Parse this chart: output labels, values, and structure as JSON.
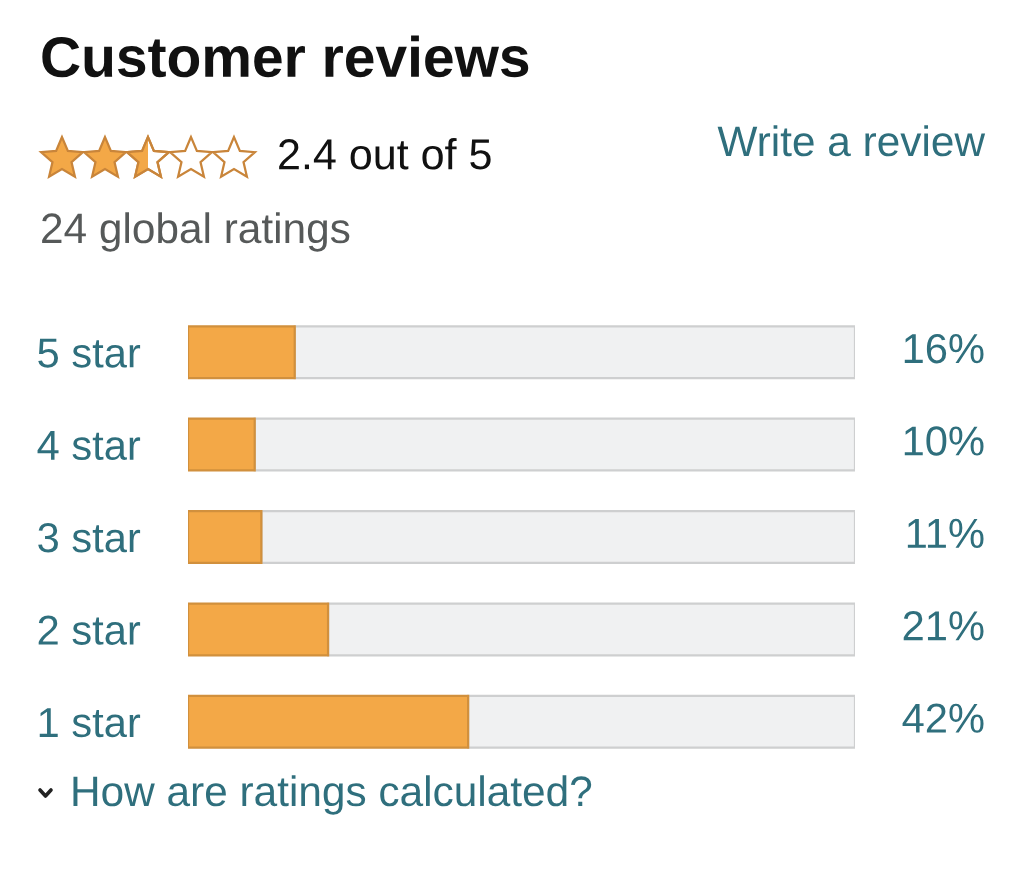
{
  "chart_data": {
    "type": "bar",
    "orientation": "horizontal",
    "stacked": true,
    "title": "Customer reviews",
    "subtitle": "2.4 out of 5",
    "annotations": [
      "24 global ratings",
      "Write a review",
      "How are ratings calculated?"
    ],
    "categories": [
      "5 star",
      "4 star",
      "3 star",
      "2 star",
      "1 star"
    ],
    "series": [
      {
        "color": "#f3a847",
        "values": [
          16,
          10,
          11,
          21,
          42
        ],
        "value_labels": [
          "16%",
          "10%",
          "11%",
          "21%",
          "42%"
        ]
      },
      {
        "color": "#f0f1f2",
        "values": [
          84,
          90,
          89,
          79,
          58
        ]
      }
    ],
    "xlim": [
      0,
      100
    ],
    "tick_labels": "y"
  }
}
